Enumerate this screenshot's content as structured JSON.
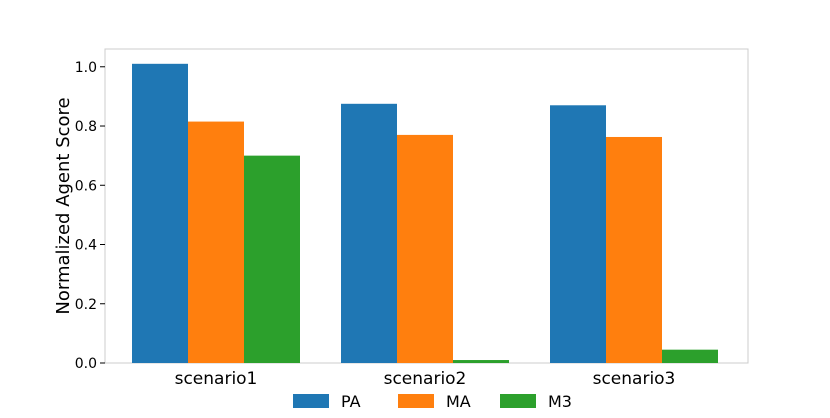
{
  "chart_data": {
    "type": "bar",
    "title": "",
    "xlabel": "",
    "ylabel": "Normalized Agent Score",
    "categories": [
      "scenario1",
      "scenario2",
      "scenario3"
    ],
    "series": [
      {
        "name": "PA",
        "color": "#1f77b4",
        "values": [
          1.01,
          0.875,
          0.87
        ]
      },
      {
        "name": "MA",
        "color": "#ff7f0e",
        "values": [
          0.815,
          0.77,
          0.763
        ]
      },
      {
        "name": "M3",
        "color": "#2ca02c",
        "values": [
          0.7,
          0.01,
          0.045
        ]
      }
    ],
    "ylim": [
      0,
      1.06
    ],
    "yticks": [
      0.0,
      0.2,
      0.4,
      0.6,
      0.8,
      1.0
    ],
    "ytick_labels": [
      "0.0",
      "0.2",
      "0.4",
      "0.6",
      "0.8",
      "1.0"
    ],
    "grid": false,
    "legend_position": "bottom-center"
  }
}
